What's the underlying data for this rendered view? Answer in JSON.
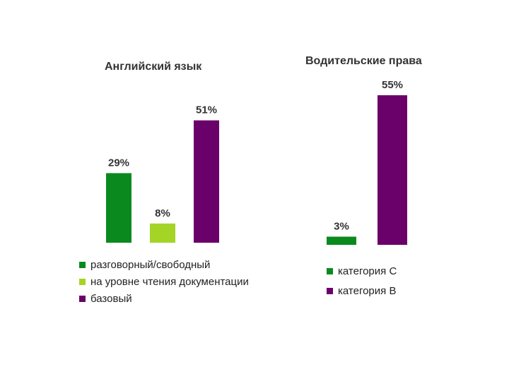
{
  "chart_data": [
    {
      "type": "bar",
      "title": "Английский язык",
      "categories": [
        "разговорный/свободный",
        "на уровне чтения документации",
        "базовый"
      ],
      "values": [
        29,
        8,
        51
      ],
      "value_labels": [
        "29%",
        "8%",
        "51%"
      ],
      "colors": [
        "#0a8a1e",
        "#a4d425",
        "#6a006a"
      ],
      "ylim": [
        0,
        55
      ],
      "grid": false,
      "legend_position": "bottom",
      "legend": [
        {
          "label": "разговорный/свободный",
          "color": "#0a8a1e"
        },
        {
          "label": "на уровне чтения документации",
          "color": "#a4d425"
        },
        {
          "label": "базовый",
          "color": "#6a006a"
        }
      ]
    },
    {
      "type": "bar",
      "title": "Водительские права",
      "categories": [
        "категория С",
        "категория В"
      ],
      "values": [
        3,
        55
      ],
      "value_labels": [
        "3%",
        "55%"
      ],
      "colors": [
        "#0a8a1e",
        "#6a006a"
      ],
      "ylim": [
        0,
        55
      ],
      "grid": false,
      "legend_position": "bottom",
      "legend": [
        {
          "label": "категория С",
          "color": "#0a8a1e"
        },
        {
          "label": "категория В",
          "color": "#6a006a"
        }
      ]
    }
  ]
}
